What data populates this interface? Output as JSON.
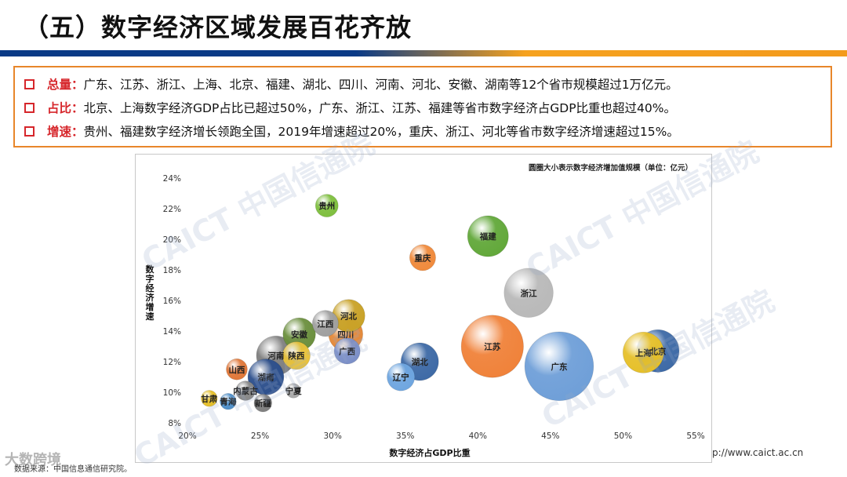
{
  "page": {
    "title": "（五）数字经济区域发展百花齐放",
    "footer_source": "数据来源：中国信息通信研究院。",
    "footer_brand": "大数跨境",
    "footer_url": "p://www.caict.ac.cn"
  },
  "points": [
    {
      "keyword": "总量：",
      "text": "广东、江苏、浙江、上海、北京、福建、湖北、四川、河南、河北、安徽、湖南等12个省市规模超过1万亿元。"
    },
    {
      "keyword": "占比：",
      "text": "北京、上海数字经济GDP占比已超过50%，广东、浙江、江苏、福建等省市数字经济占GDP比重也超过40%。"
    },
    {
      "keyword": "增速：",
      "text": "贵州、福建数字经济增长领跑全国，2019年增速超过20%，重庆、浙江、河北等省市数字经济增速超过15%。"
    }
  ],
  "watermark": "CAICT 中国信通院",
  "colors": {
    "accent_red": "#d6262b",
    "box_border": "#e8862a",
    "bar_blue": "#0a3a86",
    "bar_orange": "#f6a21e"
  },
  "chart_data": {
    "type": "scatter",
    "title": "",
    "note": "圆圈大小表示数字经济增加值规模（单位：亿元）",
    "xlabel": "数字经济占GDP比重",
    "ylabel": "数字经济增速",
    "xlim": [
      20,
      55
    ],
    "ylim": [
      8,
      24
    ],
    "x_ticks": [
      "20%",
      "25%",
      "30%",
      "35%",
      "40%",
      "45%",
      "50%",
      "55%"
    ],
    "y_ticks": [
      "8%",
      "10%",
      "12%",
      "14%",
      "16%",
      "18%",
      "20%",
      "22%",
      "24%"
    ],
    "points": [
      {
        "name": "贵州",
        "x": 29.6,
        "y": 22.2,
        "size": 1.0,
        "color": "#7fbf3f"
      },
      {
        "name": "福建",
        "x": 40.7,
        "y": 20.2,
        "size": 2.1,
        "color": "#62a83a"
      },
      {
        "name": "重庆",
        "x": 36.2,
        "y": 18.8,
        "size": 1.2,
        "color": "#f08a3c"
      },
      {
        "name": "浙江",
        "x": 43.5,
        "y": 16.5,
        "size": 2.6,
        "color": "#b9b9b9"
      },
      {
        "name": "河北",
        "x": 31.1,
        "y": 15.0,
        "size": 1.6,
        "color": "#c9a227"
      },
      {
        "name": "江西",
        "x": 29.5,
        "y": 14.5,
        "size": 1.2,
        "color": "#a0a0a0"
      },
      {
        "name": "安徽",
        "x": 27.7,
        "y": 13.8,
        "size": 1.6,
        "color": "#6b8f3e"
      },
      {
        "name": "四川",
        "x": 30.9,
        "y": 13.8,
        "size": 1.7,
        "color": "#e4893a"
      },
      {
        "name": "广西",
        "x": 31.0,
        "y": 12.7,
        "size": 1.2,
        "color": "#7b8fc8"
      },
      {
        "name": "江苏",
        "x": 41.0,
        "y": 13.0,
        "size": 3.4,
        "color": "#f0823a"
      },
      {
        "name": "湖北",
        "x": 36.0,
        "y": 12.0,
        "size": 1.9,
        "color": "#3e6aa6"
      },
      {
        "name": "河南",
        "x": 26.1,
        "y": 12.4,
        "size": 2.0,
        "color": "#7f7f7f"
      },
      {
        "name": "陕西",
        "x": 27.5,
        "y": 12.4,
        "size": 1.3,
        "color": "#e8c23c"
      },
      {
        "name": "上海",
        "x": 51.4,
        "y": 12.6,
        "size": 2.1,
        "color": "#e6c02a"
      },
      {
        "name": "北京",
        "x": 52.4,
        "y": 12.7,
        "size": 2.2,
        "color": "#3e6aa6"
      },
      {
        "name": "广东",
        "x": 45.6,
        "y": 11.7,
        "size": 3.8,
        "color": "#6f9fd8"
      },
      {
        "name": "山西",
        "x": 23.4,
        "y": 11.5,
        "size": 0.9,
        "color": "#e0783a"
      },
      {
        "name": "辽宁",
        "x": 34.7,
        "y": 11.0,
        "size": 1.3,
        "color": "#6fa6e0"
      },
      {
        "name": "湖南",
        "x": 25.4,
        "y": 11.0,
        "size": 1.8,
        "color": "#2c4f8c"
      },
      {
        "name": "内蒙古",
        "x": 24.0,
        "y": 10.1,
        "size": 0.8,
        "color": "#888888"
      },
      {
        "name": "宁夏",
        "x": 27.3,
        "y": 10.1,
        "size": 0.5,
        "color": "#aaaaaa"
      },
      {
        "name": "甘肃",
        "x": 21.5,
        "y": 9.6,
        "size": 0.6,
        "color": "#e6c02a"
      },
      {
        "name": "青海",
        "x": 22.8,
        "y": 9.4,
        "size": 0.6,
        "color": "#4f8fc8"
      },
      {
        "name": "新疆",
        "x": 25.2,
        "y": 9.3,
        "size": 0.7,
        "color": "#7f7f7f"
      }
    ]
  }
}
